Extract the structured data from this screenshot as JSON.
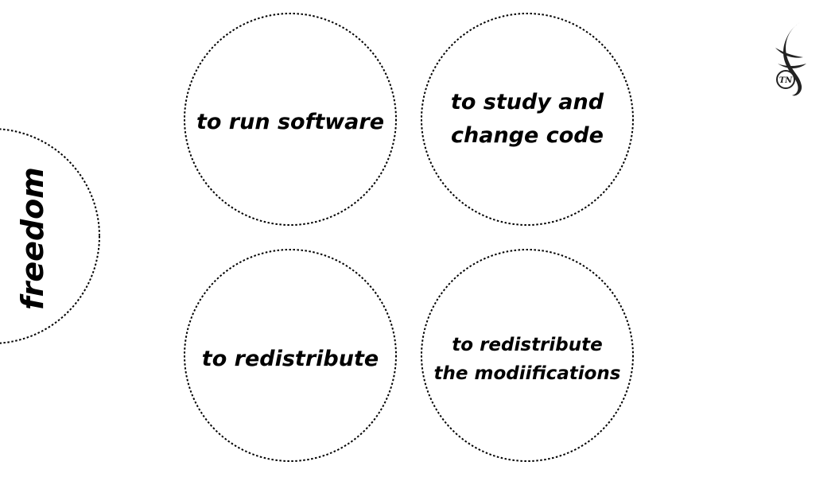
{
  "center": {
    "label": "freedom"
  },
  "nodes": [
    {
      "lines": [
        "to run software"
      ]
    },
    {
      "lines": [
        "to study and",
        "change code"
      ]
    },
    {
      "lines": [
        "to redistribute"
      ]
    },
    {
      "lines": [
        "to redistribute",
        "the modiifications"
      ]
    }
  ],
  "logo": {
    "text": "TN"
  }
}
